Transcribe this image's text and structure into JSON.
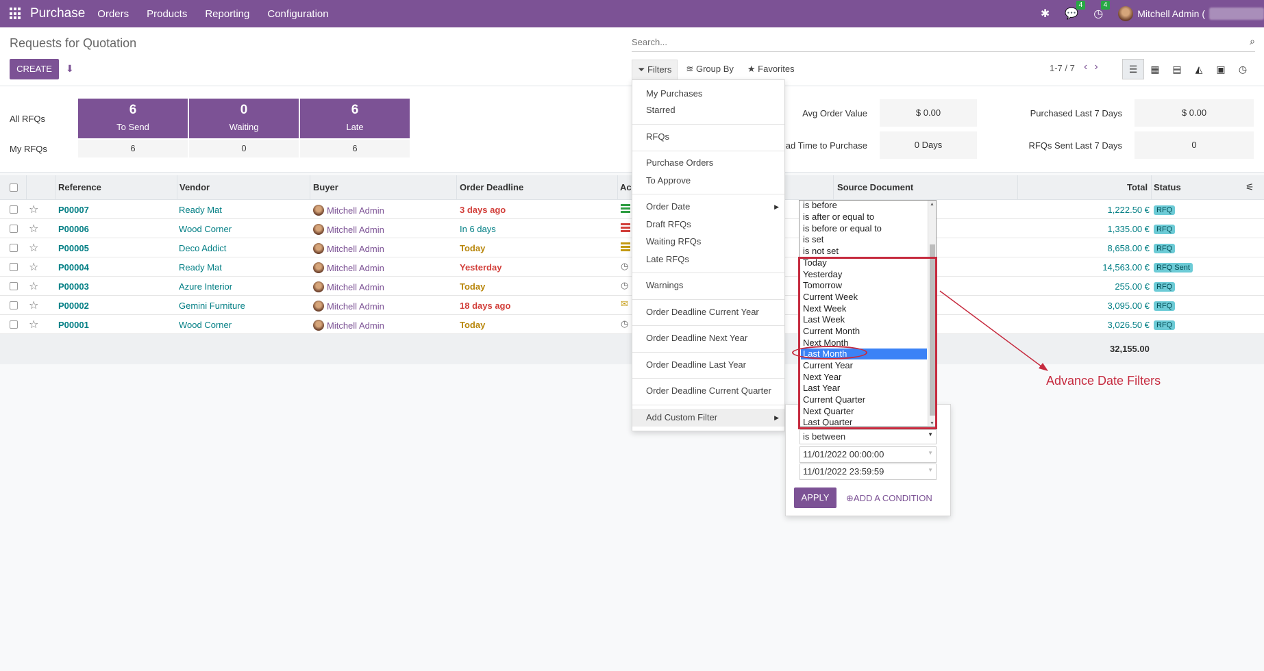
{
  "nav": {
    "app_title": "Purchase",
    "menu": [
      "Orders",
      "Products",
      "Reporting",
      "Configuration"
    ],
    "messages_count": "4",
    "activities_count": "4",
    "user_name": "Mitchell Admin ("
  },
  "control": {
    "title": "Requests for Quotation",
    "create_label": "CREATE",
    "search_placeholder": "Search...",
    "filters_label": "Filters",
    "groupby_label": "Group By",
    "favorites_label": "Favorites",
    "pager": "1-7 / 7"
  },
  "dashboard": {
    "all_rfqs_label": "All RFQs",
    "my_rfqs_label": "My RFQs",
    "tiles": [
      {
        "value": "6",
        "label": "To Send",
        "mine": "6"
      },
      {
        "value": "0",
        "label": "Waiting",
        "mine": "0"
      },
      {
        "value": "6",
        "label": "Late",
        "mine": "6"
      }
    ],
    "kpis": [
      {
        "label": "Avg Order Value",
        "value": "$ 0.00"
      },
      {
        "label": "Purchased Last 7 Days",
        "value": "$ 0.00"
      },
      {
        "label": "ad Time to Purchase",
        "value": "0 Days"
      },
      {
        "label": "RFQs Sent Last 7 Days",
        "value": "0"
      }
    ]
  },
  "table": {
    "headers": {
      "reference": "Reference",
      "vendor": "Vendor",
      "buyer": "Buyer",
      "deadline": "Order Deadline",
      "activities": "Ac",
      "source": "Source Document",
      "total": "Total",
      "status": "Status"
    },
    "rows": [
      {
        "ref": "P00007",
        "vendor": "Ready Mat",
        "buyer": "Mitchell Admin",
        "deadline": "3 days ago",
        "total": "1,222.50 €",
        "status": "RFQ"
      },
      {
        "ref": "P00006",
        "vendor": "Wood Corner",
        "buyer": "Mitchell Admin",
        "deadline": "In 6 days",
        "total": "1,335.00 €",
        "status": "RFQ"
      },
      {
        "ref": "P00005",
        "vendor": "Deco Addict",
        "buyer": "Mitchell Admin",
        "deadline": "Today",
        "total": "8,658.00 €",
        "status": "RFQ"
      },
      {
        "ref": "P00004",
        "vendor": "Ready Mat",
        "buyer": "Mitchell Admin",
        "deadline": "Yesterday",
        "total": "14,563.00 €",
        "status": "RFQ Sent"
      },
      {
        "ref": "P00003",
        "vendor": "Azure Interior",
        "buyer": "Mitchell Admin",
        "deadline": "Today",
        "total": "255.00 €",
        "status": "RFQ"
      },
      {
        "ref": "P00002",
        "vendor": "Gemini Furniture",
        "buyer": "Mitchell Admin",
        "deadline": "18 days ago",
        "total": "3,095.00 €",
        "status": "RFQ"
      },
      {
        "ref": "P00001",
        "vendor": "Wood Corner",
        "buyer": "Mitchell Admin",
        "deadline": "Today",
        "total": "3,026.50 €",
        "status": "RFQ"
      }
    ],
    "sum_total": "32,155.00"
  },
  "filters_menu": {
    "my_purchases": "My Purchases",
    "starred": "Starred",
    "rfqs": "RFQs",
    "purchase_orders": "Purchase Orders",
    "to_approve": "To Approve",
    "order_date": "Order Date",
    "draft_rfqs": "Draft RFQs",
    "waiting_rfqs": "Waiting RFQs",
    "late_rfqs": "Late RFQs",
    "warnings": "Warnings",
    "deadline_current_year": "Order Deadline Current Year",
    "deadline_next_year": "Order Deadline Next Year",
    "deadline_last_year": "Order Deadline Last Year",
    "deadline_current_quarter": "Order Deadline Current Quarter",
    "add_custom_filter": "Add Custom Filter"
  },
  "custom_filter": {
    "operator": "is between",
    "date_from": "11/01/2022 00:00:00",
    "date_to": "11/01/2022 23:59:59",
    "apply_label": "APPLY",
    "add_condition_label": "ADD A CONDITION",
    "options": [
      "is before",
      "is after or equal to",
      "is before or equal to",
      "is set",
      "is not set",
      "Today",
      "Yesterday",
      "Tomorrow",
      "Current Week",
      "Next Week",
      "Last Week",
      "Current Month",
      "Next Month",
      "Last Month",
      "Current Year",
      "Next Year",
      "Last Year",
      "Current Quarter",
      "Next Quarter",
      "Last Quarter"
    ],
    "selected_option": "Last Month"
  },
  "annotation": {
    "label": "Advance Date Filters",
    "color": "#c62b3f"
  }
}
